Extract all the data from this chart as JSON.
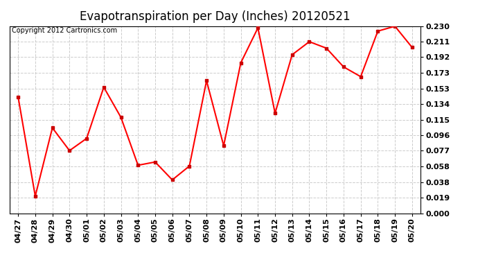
{
  "title": "Evapotranspiration per Day (Inches) 20120521",
  "copyright": "Copyright 2012 Cartronics.com",
  "labels": [
    "04/27",
    "04/28",
    "04/29",
    "04/30",
    "05/01",
    "05/02",
    "05/03",
    "05/04",
    "05/05",
    "05/06",
    "05/07",
    "05/08",
    "05/09",
    "05/10",
    "05/11",
    "05/12",
    "05/13",
    "05/14",
    "05/15",
    "05/16",
    "05/17",
    "05/18",
    "05/19",
    "05/20"
  ],
  "values": [
    0.143,
    0.021,
    0.105,
    0.077,
    0.092,
    0.155,
    0.118,
    0.059,
    0.063,
    0.041,
    0.058,
    0.163,
    0.083,
    0.185,
    0.228,
    0.123,
    0.195,
    0.211,
    0.203,
    0.18,
    0.168,
    0.224,
    0.23,
    0.204
  ],
  "ylim": [
    0.0,
    0.2303
  ],
  "yticks": [
    0.0,
    0.019,
    0.038,
    0.058,
    0.077,
    0.096,
    0.115,
    0.134,
    0.153,
    0.173,
    0.192,
    0.211,
    0.23
  ],
  "line_color": "#ff0000",
  "marker": "s",
  "marker_color": "#cc0000",
  "marker_size": 3,
  "bg_color": "#ffffff",
  "plot_bg_color": "#ffffff",
  "grid_color": "#cccccc",
  "title_fontsize": 12,
  "copyright_fontsize": 7,
  "tick_fontsize": 8
}
